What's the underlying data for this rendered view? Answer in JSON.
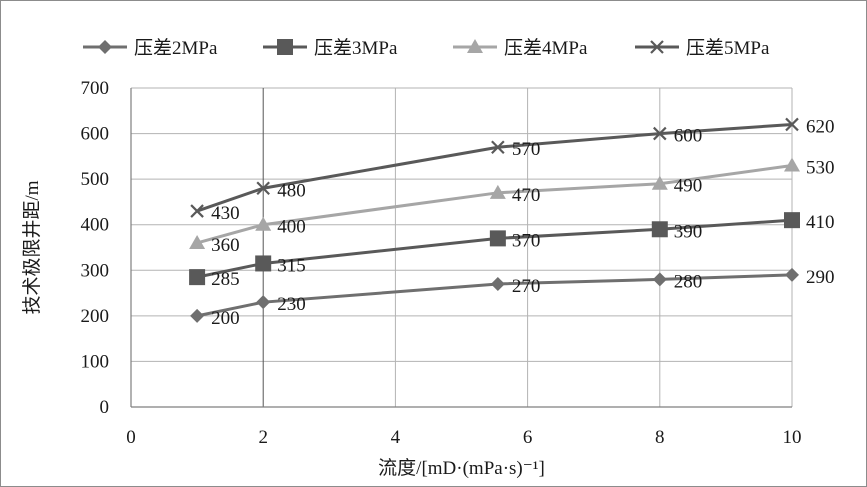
{
  "chart_data": {
    "type": "line",
    "title": "",
    "xlabel": "流度/[mD·(mPa·s)⁻¹]",
    "ylabel": "技术极限井距/m",
    "xlim": [
      0,
      10
    ],
    "ylim": [
      0,
      700
    ],
    "x_ticks": [
      0,
      2,
      4,
      6,
      8,
      10
    ],
    "y_ticks": [
      0,
      100,
      200,
      300,
      400,
      500,
      600,
      700
    ],
    "grid": true,
    "legend_position": "top",
    "series": [
      {
        "name": "压差2MPa",
        "marker": "diamond",
        "color": "#6f6f6f",
        "x": [
          1,
          2,
          5.55,
          8,
          10
        ],
        "values": [
          200,
          230,
          270,
          280,
          290
        ],
        "labels": [
          "200",
          "230",
          "270",
          "280",
          "290"
        ]
      },
      {
        "name": "压差3MPa",
        "marker": "square",
        "color": "#595959",
        "x": [
          1,
          2,
          5.55,
          8,
          10
        ],
        "values": [
          285,
          315,
          370,
          390,
          410
        ],
        "labels": [
          "285",
          "315",
          "370",
          "390",
          "410"
        ]
      },
      {
        "name": "压差4MPa",
        "marker": "triangle",
        "color": "#a6a6a6",
        "x": [
          1,
          2,
          5.55,
          8,
          10
        ],
        "values": [
          360,
          400,
          470,
          490,
          530
        ],
        "labels": [
          "360",
          "400",
          "470",
          "490",
          "530"
        ]
      },
      {
        "name": "压差5MPa",
        "marker": "x",
        "color": "#595959",
        "x": [
          1,
          2,
          5.55,
          8,
          10
        ],
        "values": [
          430,
          480,
          570,
          600,
          620
        ],
        "labels": [
          "430",
          "480",
          "570",
          "600",
          "620"
        ]
      }
    ]
  }
}
